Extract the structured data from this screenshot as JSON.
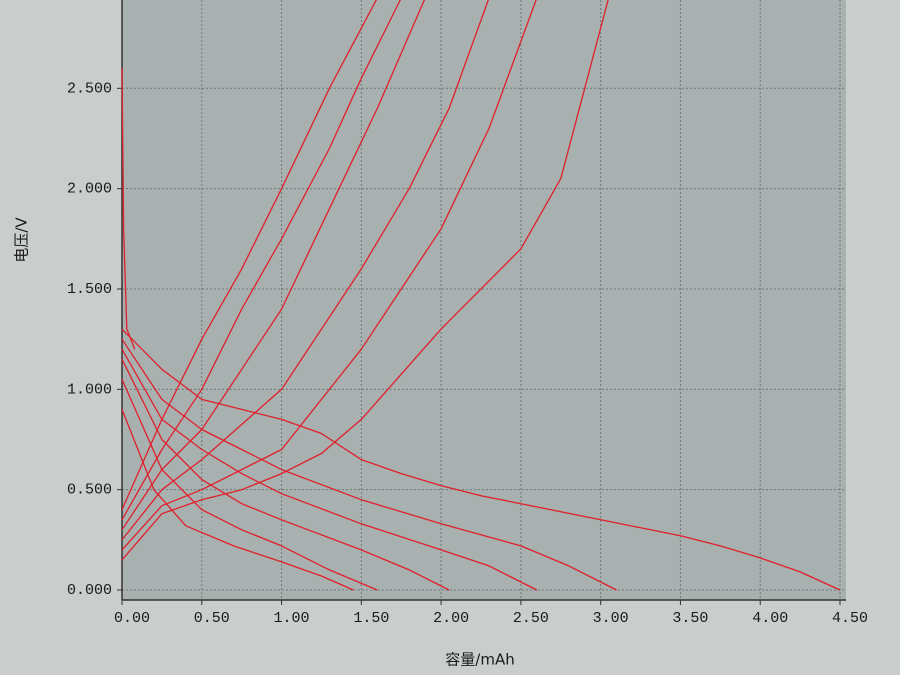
{
  "chart_data": {
    "type": "line",
    "xlabel": "容量/mAh",
    "ylabel": "电压/V",
    "xlim": [
      0,
      4.5
    ],
    "ylim": [
      0,
      2.95
    ],
    "grid": true,
    "background": "#a8b0b0",
    "xticks": [
      {
        "value": 0,
        "label": "0.00"
      },
      {
        "value": 0.5,
        "label": "0.50"
      },
      {
        "value": 1,
        "label": "1.00"
      },
      {
        "value": 1.5,
        "label": "1.50"
      },
      {
        "value": 2,
        "label": "2.00"
      },
      {
        "value": 2.5,
        "label": "2.50"
      },
      {
        "value": 3,
        "label": "3.00"
      },
      {
        "value": 3.5,
        "label": "3.50"
      },
      {
        "value": 4,
        "label": "4.00"
      },
      {
        "value": 4.5,
        "label": "4.50"
      }
    ],
    "yticks": [
      {
        "value": 0,
        "label": "0.000"
      },
      {
        "value": 0.5,
        "label": "0.500"
      },
      {
        "value": 1,
        "label": "1.000"
      },
      {
        "value": 1.5,
        "label": "1.500"
      },
      {
        "value": 2,
        "label": "2.000"
      },
      {
        "value": 2.5,
        "label": "2.500"
      }
    ],
    "series": [
      {
        "color": "#e0202a",
        "x": [
          0,
          0.25,
          0.5,
          0.75,
          1,
          1.25,
          1.5,
          1.75,
          2,
          2.25,
          2.5,
          2.75,
          3,
          3.25,
          3.5,
          3.75,
          4,
          4.25,
          4.5
        ],
        "values": [
          1.3,
          1.1,
          0.95,
          0.9,
          0.85,
          0.78,
          0.65,
          0.58,
          0.52,
          0.47,
          0.43,
          0.39,
          0.35,
          0.31,
          0.27,
          0.22,
          0.16,
          0.09,
          0
        ]
      },
      {
        "color": "#e0202a",
        "x": [
          0,
          0.25,
          0.5,
          0.75,
          1,
          1.5,
          2,
          2.5,
          2.8,
          3.1
        ],
        "values": [
          1.25,
          0.95,
          0.8,
          0.7,
          0.6,
          0.45,
          0.33,
          0.22,
          0.12,
          0
        ]
      },
      {
        "color": "#e0202a",
        "x": [
          0,
          0.25,
          0.5,
          0.75,
          1,
          1.5,
          2,
          2.3,
          2.6
        ],
        "values": [
          1.2,
          0.85,
          0.7,
          0.58,
          0.48,
          0.33,
          0.2,
          0.12,
          0
        ]
      },
      {
        "color": "#e0202a",
        "x": [
          0,
          0.25,
          0.5,
          0.75,
          1,
          1.5,
          1.8,
          2.05
        ],
        "values": [
          1.15,
          0.75,
          0.55,
          0.43,
          0.35,
          0.2,
          0.1,
          0
        ]
      },
      {
        "color": "#e0202a",
        "x": [
          0,
          0.25,
          0.5,
          0.75,
          1,
          1.3,
          1.6
        ],
        "values": [
          1.05,
          0.6,
          0.4,
          0.3,
          0.22,
          0.1,
          0
        ]
      },
      {
        "color": "#e0202a",
        "x": [
          0,
          0.2,
          0.4,
          0.7,
          1,
          1.25,
          1.45
        ],
        "values": [
          0.9,
          0.5,
          0.32,
          0.22,
          0.14,
          0.07,
          0
        ]
      },
      {
        "color": "#e0202a",
        "x": [
          0,
          0.25,
          0.5,
          0.75,
          1,
          1.25,
          1.5,
          2,
          2.5,
          2.75,
          3.05
        ],
        "values": [
          0.15,
          0.38,
          0.45,
          0.5,
          0.58,
          0.68,
          0.85,
          1.3,
          1.7,
          2.05,
          2.95
        ]
      },
      {
        "color": "#e0202a",
        "x": [
          0,
          0.25,
          0.5,
          1,
          1.5,
          2,
          2.3,
          2.6
        ],
        "values": [
          0.2,
          0.42,
          0.5,
          0.7,
          1.2,
          1.8,
          2.3,
          2.95
        ]
      },
      {
        "color": "#e0202a",
        "x": [
          0,
          0.25,
          0.5,
          1,
          1.5,
          1.8,
          2.05,
          2.3
        ],
        "values": [
          0.25,
          0.5,
          0.65,
          1.0,
          1.6,
          2.0,
          2.4,
          2.95
        ]
      },
      {
        "color": "#e0202a",
        "x": [
          0,
          0.25,
          0.5,
          1,
          1.3,
          1.6,
          1.9
        ],
        "values": [
          0.3,
          0.6,
          0.8,
          1.4,
          1.9,
          2.4,
          2.95
        ]
      },
      {
        "color": "#e0202a",
        "x": [
          0,
          0.25,
          0.5,
          0.75,
          1,
          1.3,
          1.5,
          1.75
        ],
        "values": [
          0.35,
          0.7,
          1.0,
          1.4,
          1.75,
          2.2,
          2.55,
          2.95
        ]
      },
      {
        "color": "#e0202a",
        "x": [
          0,
          0.25,
          0.5,
          0.75,
          1,
          1.3,
          1.6
        ],
        "values": [
          0.4,
          0.85,
          1.25,
          1.6,
          2.0,
          2.5,
          2.95
        ]
      },
      {
        "color": "#e0202a",
        "x": [
          0,
          0.01,
          0.03,
          0.08
        ],
        "values": [
          2.6,
          1.8,
          1.3,
          1.2
        ]
      }
    ]
  }
}
